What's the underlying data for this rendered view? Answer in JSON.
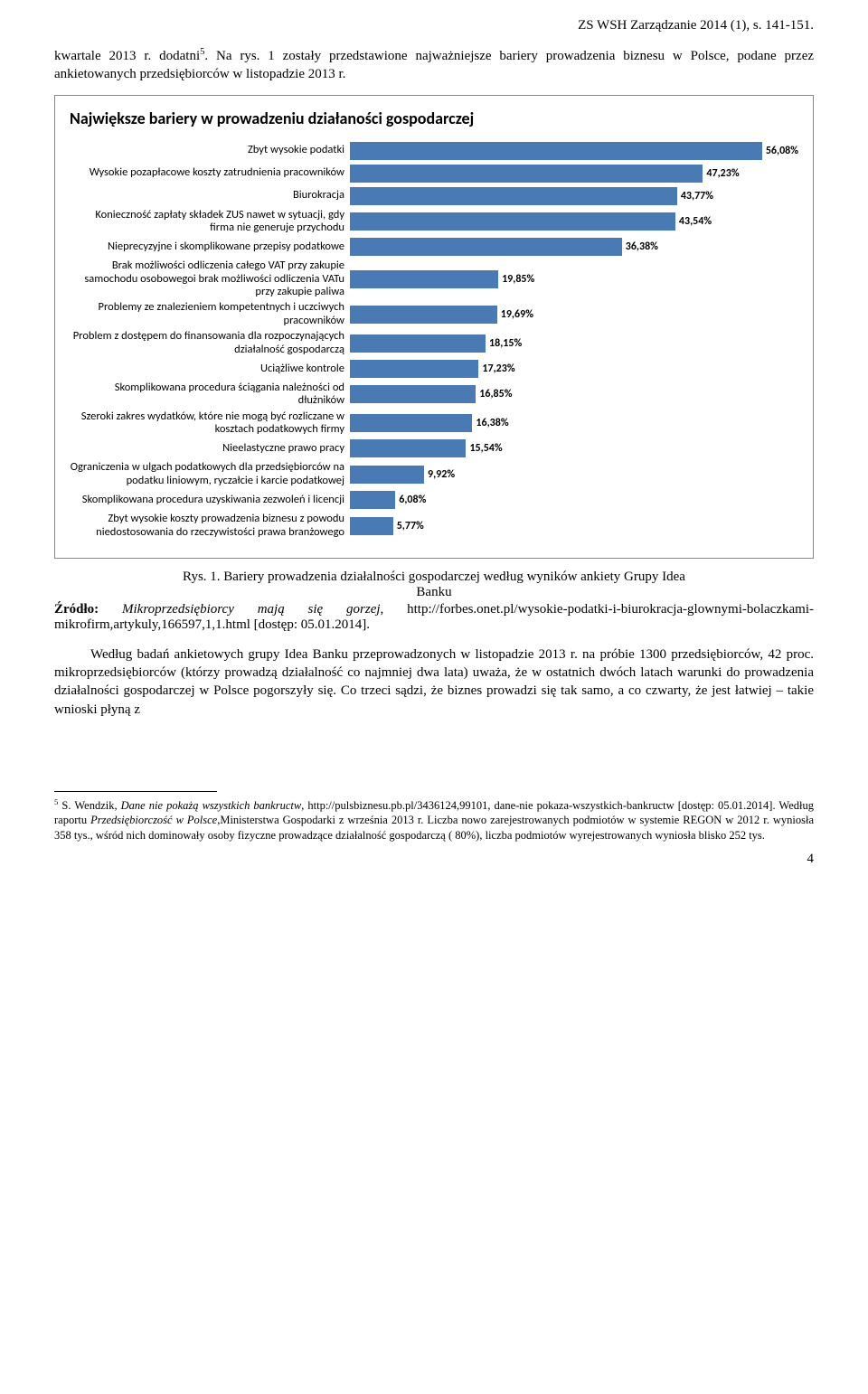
{
  "header": "ZS WSH Zarządzanie 2014 (1), s. 141-151.",
  "para1_a": "kwartale 2013 r. dodatni",
  "para1_sup": "5",
  "para1_b": ". Na rys. 1 zostały przedstawione najważniejsze bariery prowadzenia biznesu w Polsce, podane przez ankietowanych przedsiębiorców w listopadzie 2013 r.",
  "chart": {
    "title": "Największe bariery w prowadzeniu działaności gospodarczej",
    "bar_color": "#4a7ab4",
    "max_value": 60,
    "items": [
      {
        "label": "Zbyt wysokie podatki",
        "value": 56.08,
        "display": "56,08%"
      },
      {
        "label": "Wysokie pozapłacowe koszty zatrudnienia pracowników",
        "value": 47.23,
        "display": "47,23%"
      },
      {
        "label": "Biurokracja",
        "value": 43.77,
        "display": "43,77%"
      },
      {
        "label": "Konieczność zapłaty składek ZUS nawet w sytuacji, gdy firma nie generuje przychodu",
        "value": 43.54,
        "display": "43,54%"
      },
      {
        "label": "Nieprecyzyjne i skomplikowane przepisy podatkowe",
        "value": 36.38,
        "display": "36,38%"
      },
      {
        "label": "Brak możliwości odliczenia całego VAT przy zakupie samochodu osobowegoi brak możliwości odliczenia VATu przy zakupie paliwa",
        "value": 19.85,
        "display": "19,85%"
      },
      {
        "label": "Problemy ze znalezieniem kompetentnych i uczciwych pracowników",
        "value": 19.69,
        "display": "19,69%"
      },
      {
        "label": "Problem z dostępem do finansowania dla rozpoczynających działalność gospodarczą",
        "value": 18.15,
        "display": "18,15%"
      },
      {
        "label": "Uciążliwe kontrole",
        "value": 17.23,
        "display": "17,23%"
      },
      {
        "label": "Skomplikowana procedura ściągania należności od dłużników",
        "value": 16.85,
        "display": "16,85%"
      },
      {
        "label": "Szeroki zakres wydatków, które nie mogą być rozliczane w kosztach podatkowych firmy",
        "value": 16.38,
        "display": "16,38%"
      },
      {
        "label": "Nieelastyczne prawo pracy",
        "value": 15.54,
        "display": "15,54%"
      },
      {
        "label": "Ograniczenia w ulgach podatkowych dla przedsiębiorców na podatku liniowym, ryczałcie i karcie podatkowej",
        "value": 9.92,
        "display": "9,92%"
      },
      {
        "label": "Skomplikowana procedura uzyskiwania zezwoleń i licencji",
        "value": 6.08,
        "display": "6,08%"
      },
      {
        "label": "Zbyt wysokie koszty prowadzenia biznesu z powodu niedostosowania do rzeczywistości prawa branżowego",
        "value": 5.77,
        "display": "5,77%"
      }
    ]
  },
  "caption_a": "Rys. 1. Bariery prowadzenia działalności gospodarczej według wyników ankiety Grupy Idea",
  "caption_b": "Banku",
  "source_label": "Źródło:",
  "source_ital": " Mikroprzedsiębiorcy mają się gorzej",
  "source_rest": ", http://forbes.onet.pl/wysokie-podatki-i-biurokracja-glownymi-bolaczkami-mikrofirm,artykuly,166597,1,1.html [dostęp: 05.01.2014].",
  "para2": "Według badań ankietowych grupy Idea Banku  przeprowadzonych w listopadzie 2013 r. na próbie 1300 przedsiębiorców, 42 proc. mikroprzedsiębiorców  (którzy prowadzą działalność co najmniej dwa lata) uważa, że w ostatnich dwóch latach warunki do prowadzenia działalności gospodarczej w Polsce pogorszyły się. Co trzeci sądzi, że biznes prowadzi się tak samo, a co czwarty, że jest łatwiej – takie wnioski płyną z",
  "footnote_sup": "5",
  "footnote_a": " S. Wendzik, ",
  "footnote_ital1": "Dane nie pokażą wszystkich bankructw",
  "footnote_b": ", http://pulsbiznesu.pb.pl/3436124,99101, dane-nie pokaza-wszystkich-bankructw [dostęp: 05.01.2014]. Według raportu ",
  "footnote_ital2": "Przedsiębiorczość w Polsce,",
  "footnote_c": "Ministerstwa Gospodarki z września 2013 r. Liczba nowo zarejestrowanych podmiotów w systemie REGON w 2012 r. wyniosła 358 tys., wśród nich dominowały osoby fizyczne prowadzące działalność gospodarczą ( 80%), liczba podmiotów wyrejestrowanych wyniosła blisko 252 tys.",
  "page_number": "4"
}
